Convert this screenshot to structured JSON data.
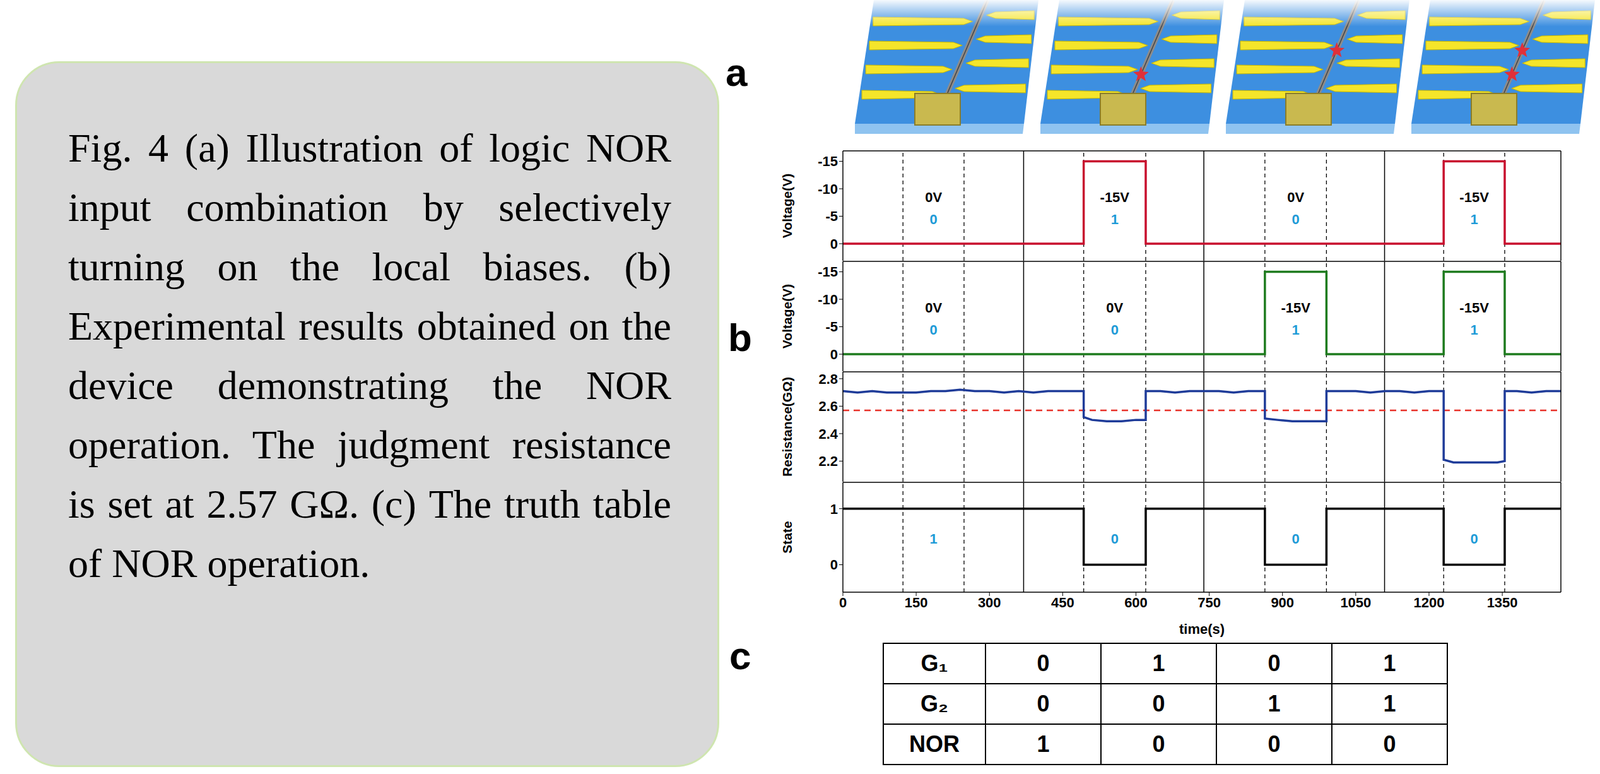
{
  "caption": "Fig. 4 (a) Illustration of logic NOR input combination by selectively turning on the local biases. (b) Experimental results obtained on the device demonstrating the NOR operation. The judgment resistance is set at 2.57 GΩ. (c) The truth table of NOR operation.",
  "panel_labels": [
    "a",
    "b",
    "c"
  ],
  "chart_data": [
    {
      "type": "line",
      "ylabel": "Voltage(V)",
      "x": [
        0,
        493,
        493,
        620,
        620,
        1230,
        1230,
        1355,
        1355,
        1470
      ],
      "values": [
        0,
        0,
        -15,
        -15,
        0,
        0,
        -15,
        -15,
        0,
        0
      ],
      "color": "#c8102e",
      "xlim": [
        0,
        1470
      ],
      "ylim": [
        3.1,
        -16.9
      ],
      "yticks": [
        -15,
        -10,
        -5,
        0
      ],
      "tick_labels": "y",
      "annotations": [
        "0V",
        "-15V",
        "0V",
        "-15V"
      ],
      "logic_values": [
        0,
        1,
        0,
        1
      ],
      "vlines": {
        "solid": [
          370,
          739,
          1109
        ],
        "dashed": [
          123,
          248,
          493,
          620,
          864,
          990,
          1230,
          1355
        ]
      }
    },
    {
      "type": "line",
      "ylabel": "Voltage(V)",
      "x": [
        0,
        864,
        864,
        990,
        990,
        1230,
        1230,
        1355,
        1355,
        1470
      ],
      "values": [
        0,
        0,
        -15,
        -15,
        0,
        0,
        -15,
        -15,
        0,
        0
      ],
      "color": "#1e7b1e",
      "xlim": [
        0,
        1470
      ],
      "ylim": [
        3.1,
        -16.9
      ],
      "yticks": [
        -15,
        -10,
        -5,
        0
      ],
      "tick_labels": "y",
      "annotations": [
        "0V",
        "0V",
        "-15V",
        "-15V"
      ],
      "logic_values": [
        0,
        0,
        1,
        1
      ],
      "vlines": {
        "solid": [
          370,
          739,
          1109
        ],
        "dashed": [
          123,
          248,
          493,
          620,
          864,
          990,
          1230,
          1355
        ]
      }
    },
    {
      "type": "line",
      "ylabel": "Resistance(GΩ)",
      "x": [
        0,
        30,
        60,
        90,
        120,
        150,
        180,
        210,
        240,
        270,
        300,
        330,
        360,
        390,
        420,
        450,
        480,
        493,
        493,
        510,
        540,
        570,
        600,
        620,
        620,
        650,
        680,
        710,
        740,
        770,
        800,
        830,
        864,
        864,
        890,
        920,
        950,
        990,
        990,
        1020,
        1050,
        1080,
        1110,
        1140,
        1170,
        1200,
        1230,
        1230,
        1250,
        1280,
        1310,
        1340,
        1355,
        1355,
        1380,
        1410,
        1440,
        1470
      ],
      "values": [
        2.71,
        2.7,
        2.71,
        2.7,
        2.7,
        2.7,
        2.71,
        2.71,
        2.72,
        2.71,
        2.71,
        2.7,
        2.71,
        2.7,
        2.71,
        2.71,
        2.71,
        2.71,
        2.52,
        2.5,
        2.49,
        2.49,
        2.5,
        2.5,
        2.71,
        2.71,
        2.7,
        2.71,
        2.71,
        2.71,
        2.7,
        2.71,
        2.71,
        2.51,
        2.5,
        2.49,
        2.49,
        2.49,
        2.71,
        2.71,
        2.71,
        2.7,
        2.71,
        2.71,
        2.7,
        2.71,
        2.71,
        2.21,
        2.19,
        2.19,
        2.19,
        2.19,
        2.2,
        2.71,
        2.71,
        2.7,
        2.71,
        2.71
      ],
      "color": "#1f3c99",
      "xlim": [
        0,
        1470
      ],
      "ylim": [
        2.05,
        2.85
      ],
      "yticks": [
        2.2,
        2.4,
        2.6,
        2.8
      ],
      "tick_labels": "y",
      "judgment_resistance": 2.57,
      "vlines": {
        "solid": [
          370,
          739,
          1109
        ],
        "dashed": [
          123,
          248,
          493,
          620,
          864,
          990,
          1230,
          1355
        ]
      }
    },
    {
      "type": "line",
      "ylabel": "State",
      "xlabel": "time(s)",
      "x": [
        0,
        493,
        493,
        620,
        620,
        864,
        864,
        990,
        990,
        1230,
        1230,
        1355,
        1355,
        1470
      ],
      "values": [
        1,
        1,
        0,
        0,
        1,
        1,
        0,
        0,
        1,
        1,
        0,
        0,
        1,
        1
      ],
      "color": "#000000",
      "xlim": [
        0,
        1470
      ],
      "ylim": [
        -0.49,
        1.47
      ],
      "yticks": [
        0,
        1
      ],
      "xticks": [
        0,
        150,
        300,
        450,
        600,
        750,
        900,
        1050,
        1200,
        1350
      ],
      "logic_values": [
        1,
        0,
        0,
        0
      ],
      "vlines": {
        "solid": [
          370,
          739,
          1109
        ],
        "dashed": [
          123,
          248,
          493,
          620,
          864,
          990,
          1230,
          1355
        ]
      }
    }
  ],
  "table": {
    "rows": [
      [
        "G₁",
        0,
        1,
        0,
        1
      ],
      [
        "G₂",
        0,
        0,
        1,
        1
      ],
      [
        "NOR",
        1,
        0,
        0,
        0
      ]
    ]
  }
}
